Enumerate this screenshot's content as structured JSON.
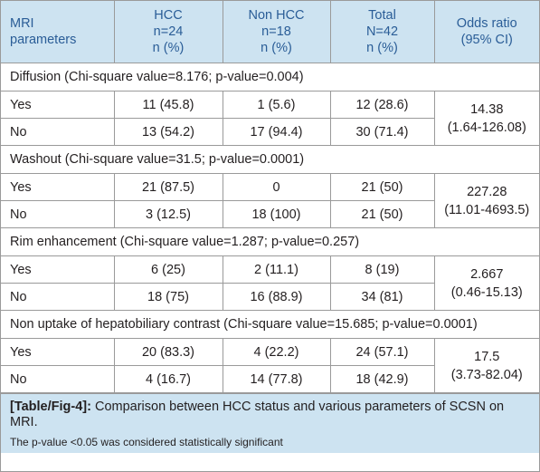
{
  "header": {
    "param": [
      "MRI",
      "parameters"
    ],
    "hcc": [
      "HCC",
      "n=24",
      "n (%)"
    ],
    "nonhcc": [
      "Non HCC",
      "n=18",
      "n (%)"
    ],
    "total": [
      "Total",
      "N=42",
      "n (%)"
    ],
    "odds": [
      "Odds ratio",
      "(95% CI)"
    ]
  },
  "sections": [
    {
      "title": "Diffusion (Chi-square value=8.176; p-value=0.004)",
      "rows": [
        {
          "label": "Yes",
          "hcc": "11 (45.8)",
          "nonhcc": "1 (5.6)",
          "total": "12 (28.6)"
        },
        {
          "label": "No",
          "hcc": "13 (54.2)",
          "nonhcc": "17 (94.4)",
          "total": "30 (71.4)"
        }
      ],
      "odds": [
        "14.38",
        "(1.64-126.08)"
      ]
    },
    {
      "title": "Washout (Chi-square value=31.5; p-value=0.0001)",
      "rows": [
        {
          "label": "Yes",
          "hcc": "21 (87.5)",
          "nonhcc": "0",
          "total": "21 (50)"
        },
        {
          "label": "No",
          "hcc": "3 (12.5)",
          "nonhcc": "18 (100)",
          "total": "21 (50)"
        }
      ],
      "odds": [
        "227.28",
        "(11.01-4693.5)"
      ]
    },
    {
      "title": "Rim enhancement (Chi-square value=1.287; p-value=0.257)",
      "rows": [
        {
          "label": "Yes",
          "hcc": "6 (25)",
          "nonhcc": "2 (11.1)",
          "total": "8 (19)"
        },
        {
          "label": "No",
          "hcc": "18 (75)",
          "nonhcc": "16 (88.9)",
          "total": "34 (81)"
        }
      ],
      "odds": [
        "2.667",
        "(0.46-15.13)"
      ]
    },
    {
      "title": "Non uptake of hepatobiliary contrast (Chi-square value=15.685; p-value=0.0001)",
      "rows": [
        {
          "label": "Yes",
          "hcc": "20 (83.3)",
          "nonhcc": "4 (22.2)",
          "total": "24 (57.1)"
        },
        {
          "label": "No",
          "hcc": "4 (16.7)",
          "nonhcc": "14 (77.8)",
          "total": "18 (42.9)"
        }
      ],
      "odds": [
        "17.5",
        "(3.73-82.04)"
      ]
    }
  ],
  "caption": {
    "tag": "[Table/Fig-4]:",
    "text": " Comparison between HCC status and various parameters of SCSN on MRI.",
    "note": "The p-value <0.05 was considered statistically significant"
  },
  "colors": {
    "header_bg": "#cde3f1",
    "header_text": "#2a5d97",
    "border": "#9a9a9a"
  }
}
